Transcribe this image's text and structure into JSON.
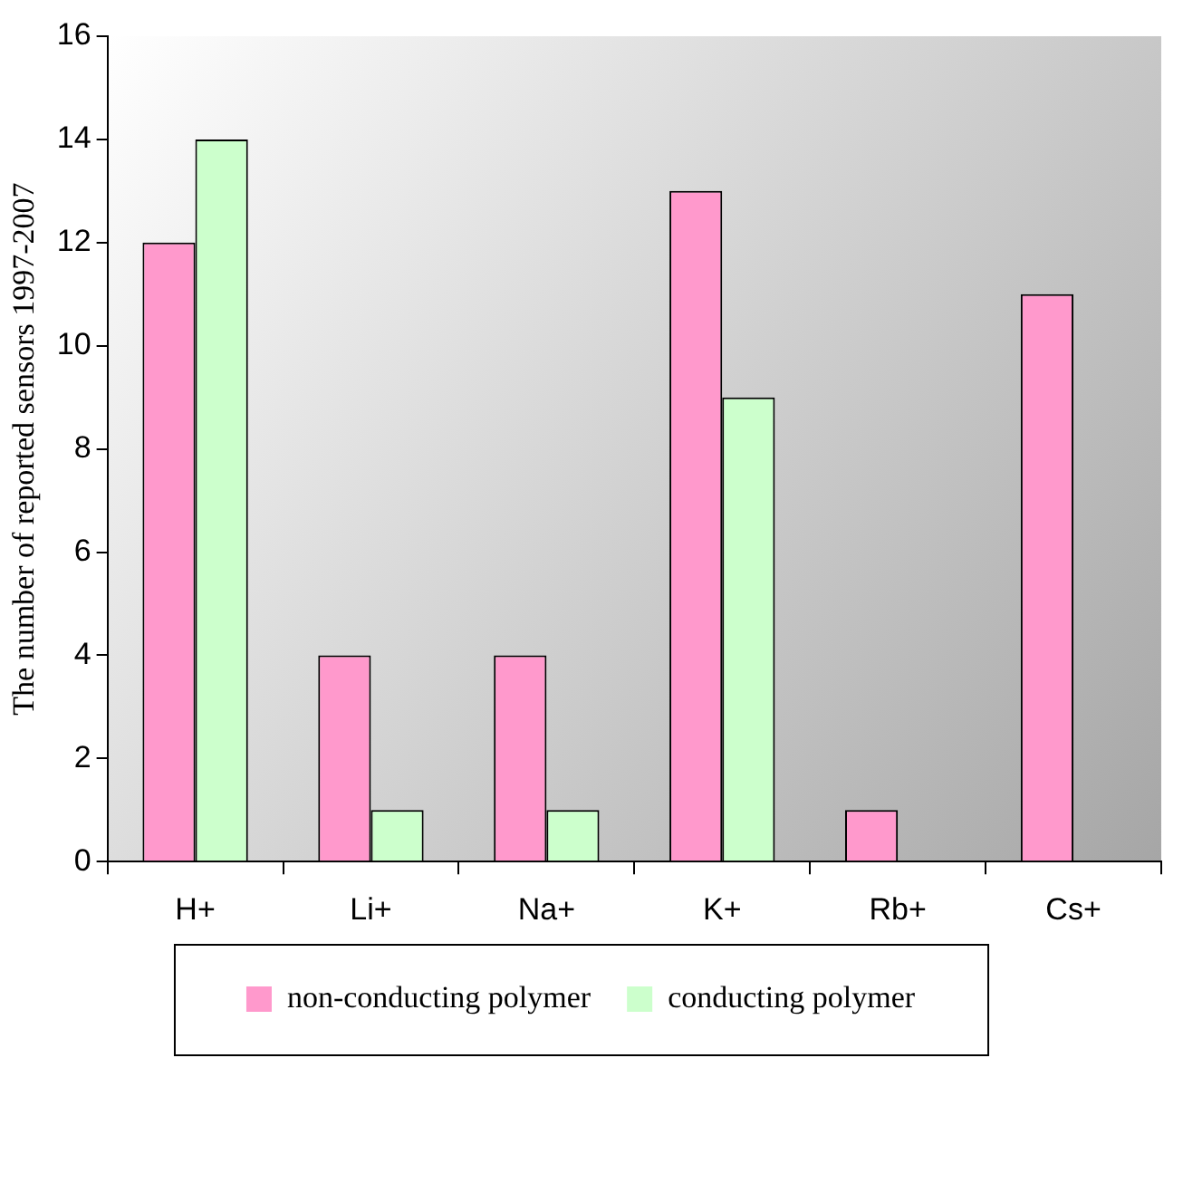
{
  "chart_data": {
    "type": "bar",
    "ylabel": "The number of reported sensors 1997-2007",
    "categories": [
      "H+",
      "Li+",
      "Na+",
      "K+",
      "Rb+",
      "Cs+"
    ],
    "series": [
      {
        "name": "non-conducting polymer",
        "color": "#ff99cc",
        "values": [
          12,
          4,
          4,
          13,
          1,
          11
        ]
      },
      {
        "name": "conducting polymer",
        "color": "#ccffcc",
        "values": [
          14,
          1,
          1,
          9,
          null,
          null
        ]
      }
    ],
    "ylim": [
      0,
      16
    ],
    "yticks": [
      0,
      2,
      4,
      6,
      8,
      10,
      12,
      14,
      16
    ],
    "grid": false,
    "legend": "bottom"
  }
}
